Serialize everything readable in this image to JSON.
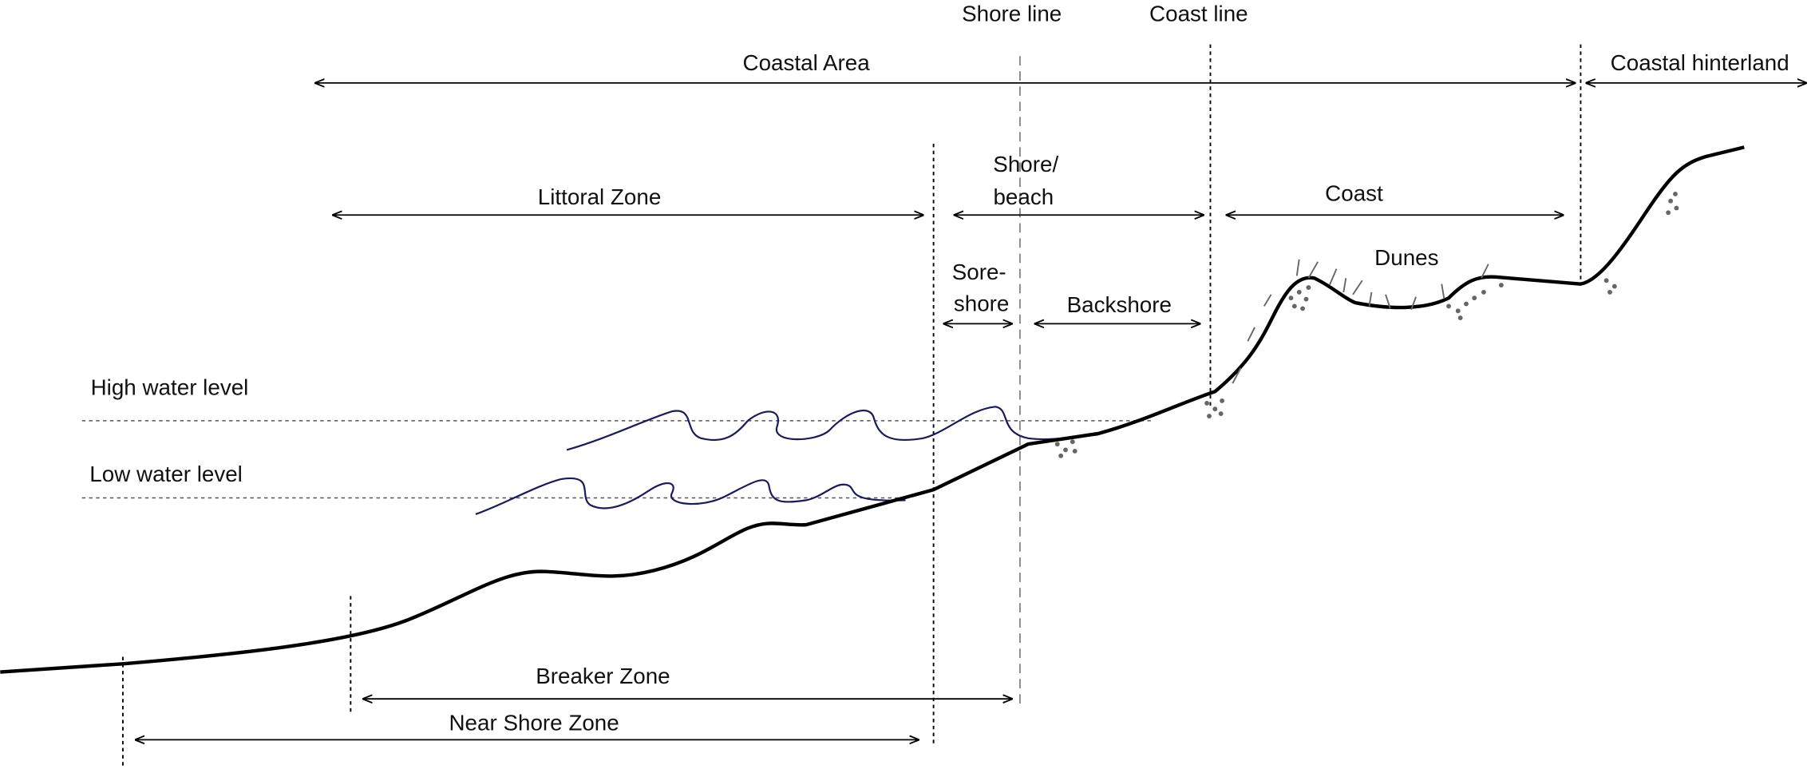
{
  "labels": {
    "shore_line": "Shore line",
    "coast_line": "Coast line",
    "coastal_area": "Coastal Area",
    "coastal_hinterland": "Coastal hinterland",
    "littoral_zone": "Littoral Zone",
    "shore_beach": [
      "Shore/",
      "beach"
    ],
    "coast": "Coast",
    "dunes": "Dunes",
    "foreshore": [
      "Sore-",
      "shore"
    ],
    "backshore": "Backshore",
    "high_water_level": "High water level",
    "low_water_level": "Low water level",
    "breaker_zone": "Breaker Zone",
    "near_shore_zone": "Near Shore Zone"
  }
}
